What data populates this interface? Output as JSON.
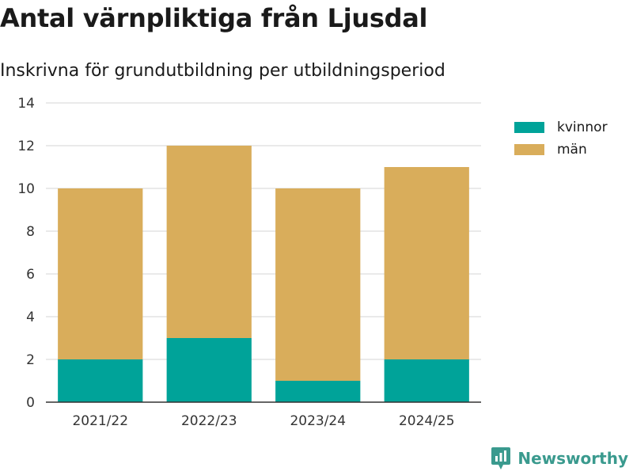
{
  "title": "Antal värnpliktiga från Ljusdal",
  "subtitle": "Inskrivna för grundutbildning per utbildningsperiod",
  "brand": {
    "name": "Newsworthy",
    "icon": "newsworthy-logo-icon",
    "color": "#3a9a8e"
  },
  "legend": [
    {
      "label": "kvinnor",
      "color": "#00a399"
    },
    {
      "label": "män",
      "color": "#d9ad5b"
    }
  ],
  "chart_data": {
    "type": "bar",
    "stacked": true,
    "categories": [
      "2021/22",
      "2022/23",
      "2023/24",
      "2024/25"
    ],
    "series": [
      {
        "name": "kvinnor",
        "values": [
          2,
          3,
          1,
          2
        ],
        "color": "#00a399"
      },
      {
        "name": "män",
        "values": [
          8,
          9,
          9,
          9
        ],
        "color": "#d9ad5b"
      }
    ],
    "ylim": [
      0,
      14
    ],
    "yticks": [
      "0",
      "2",
      "4",
      "6",
      "8",
      "10",
      "12",
      "14"
    ],
    "grid": true,
    "legend_position": "top-right",
    "title": "Antal värnpliktiga från Ljusdal",
    "xlabel": "",
    "ylabel": ""
  }
}
